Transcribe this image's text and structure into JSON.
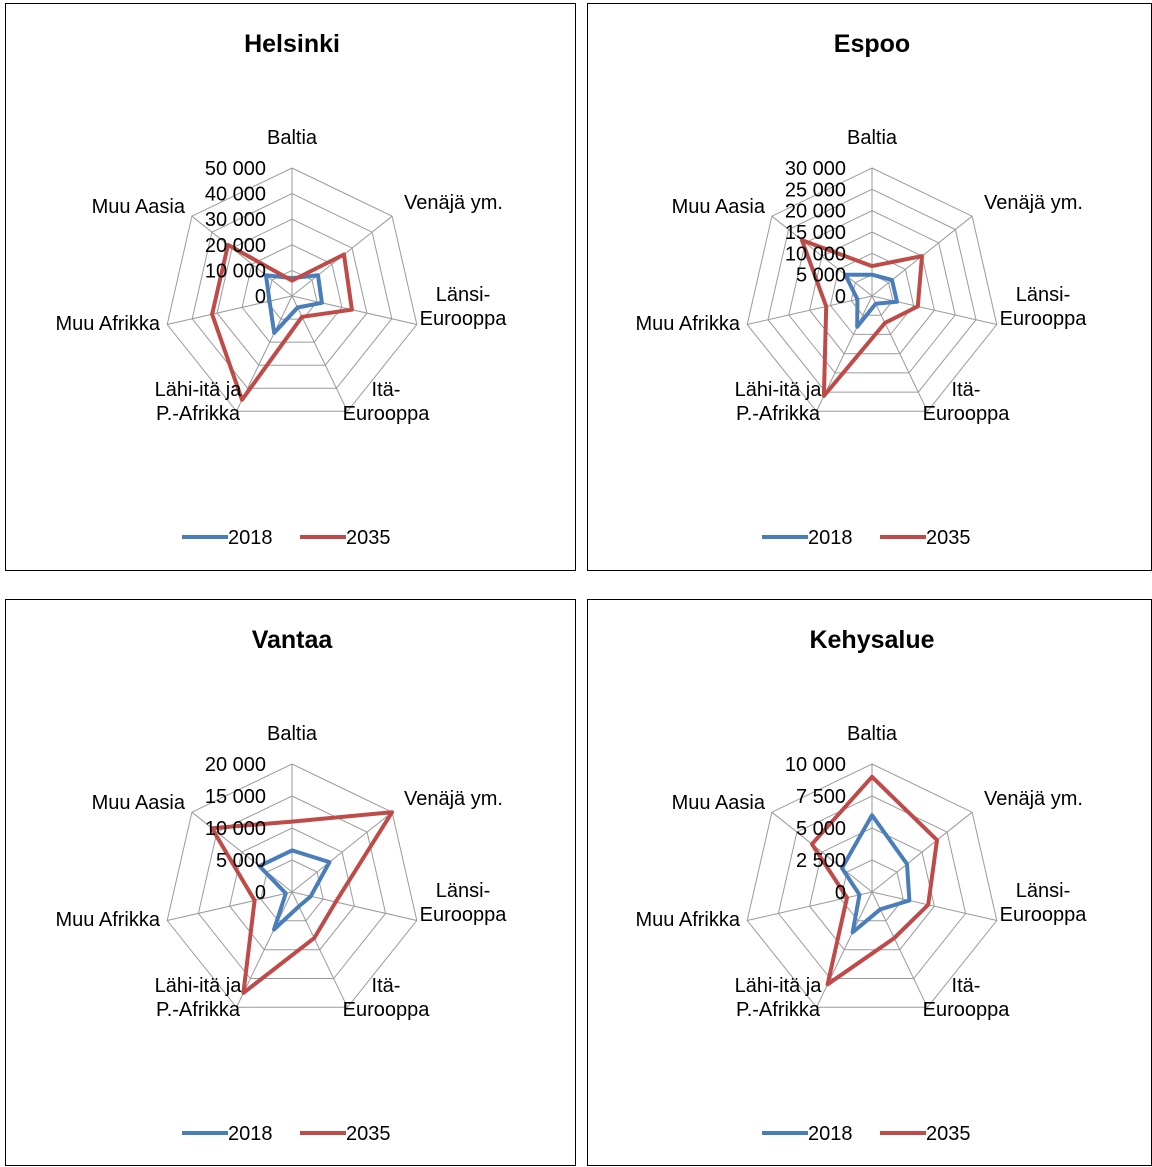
{
  "legend_colors": {
    "2018": "#4a7ebb",
    "2035": "#be4b48"
  },
  "chart_data": [
    {
      "type": "radar",
      "title": "Helsinki",
      "categories": [
        [
          "Baltia"
        ],
        [
          "Venäjä ym."
        ],
        [
          "Länsi-",
          "Eurooppa"
        ],
        [
          "Itä-",
          "Eurooppa"
        ],
        [
          "Lähi-itä ja",
          "P.-Afrikka"
        ],
        [
          "Muu Afrikka"
        ],
        [
          "Muu Aasia"
        ]
      ],
      "ticks": [
        "0",
        "10 000",
        "20 000",
        "30 000",
        "40 000",
        "50 000"
      ],
      "rmax": 50000,
      "series": [
        {
          "name": "2018",
          "color": "#4a7ebb",
          "values": [
            7000,
            13000,
            12000,
            5000,
            16000,
            9000,
            13000
          ]
        },
        {
          "name": "2035",
          "color": "#be4b48",
          "values": [
            6000,
            26000,
            24000,
            9000,
            45000,
            32000,
            32000
          ]
        }
      ],
      "legend": "bottom"
    },
    {
      "type": "radar",
      "title": "Espoo",
      "categories": [
        [
          "Baltia"
        ],
        [
          "Venäjä ym."
        ],
        [
          "Länsi-",
          "Eurooppa"
        ],
        [
          "Itä-",
          "Eurooppa"
        ],
        [
          "Lähi-itä ja",
          "P.-Afrikka"
        ],
        [
          "Muu Afrikka"
        ],
        [
          "Muu Aasia"
        ]
      ],
      "ticks": [
        "0",
        "5 000",
        "10 000",
        "15 000",
        "20 000",
        "25 000",
        "30 000"
      ],
      "rmax": 30000,
      "series": [
        {
          "name": "2018",
          "color": "#4a7ebb",
          "values": [
            5000,
            6000,
            6000,
            2000,
            8000,
            3500,
            8000
          ]
        },
        {
          "name": "2035",
          "color": "#be4b48",
          "values": [
            7000,
            15000,
            11000,
            7000,
            26000,
            11000,
            21000
          ]
        }
      ],
      "legend": "bottom"
    },
    {
      "type": "radar",
      "title": "Vantaa",
      "categories": [
        [
          "Baltia"
        ],
        [
          "Venäjä ym."
        ],
        [
          "Länsi-",
          "Eurooppa"
        ],
        [
          "Itä-",
          "Eurooppa"
        ],
        [
          "Lähi-itä ja",
          "P.-Afrikka"
        ],
        [
          "Muu Afrikka"
        ],
        [
          "Muu Aasia"
        ]
      ],
      "ticks": [
        "0",
        "5 000",
        "10 000",
        "15 000",
        "20 000"
      ],
      "rmax": 20000,
      "series": [
        {
          "name": "2018",
          "color": "#4a7ebb",
          "values": [
            6500,
            7500,
            3000,
            2500,
            6500,
            1000,
            6500
          ]
        },
        {
          "name": "2035",
          "color": "#be4b48",
          "values": [
            11000,
            20000,
            7000,
            8000,
            17500,
            6000,
            16000
          ]
        }
      ],
      "legend": "bottom"
    },
    {
      "type": "radar",
      "title": "Kehysalue",
      "categories": [
        [
          "Baltia"
        ],
        [
          "Venäjä ym."
        ],
        [
          "Länsi-",
          "Eurooppa"
        ],
        [
          "Itä-",
          "Eurooppa"
        ],
        [
          "Lähi-itä ja",
          "P.-Afrikka"
        ],
        [
          "Muu Afrikka"
        ],
        [
          "Muu Aasia"
        ]
      ],
      "ticks": [
        "0",
        "2 500",
        "5 000",
        "7 500",
        "10 000"
      ],
      "rmax": 10000,
      "series": [
        {
          "name": "2018",
          "color": "#4a7ebb",
          "values": [
            6000,
            3500,
            3000,
            1500,
            3500,
            1000,
            3000
          ]
        },
        {
          "name": "2035",
          "color": "#be4b48",
          "values": [
            9000,
            6500,
            4500,
            4000,
            8000,
            2000,
            6000
          ]
        }
      ],
      "legend": "bottom"
    }
  ]
}
